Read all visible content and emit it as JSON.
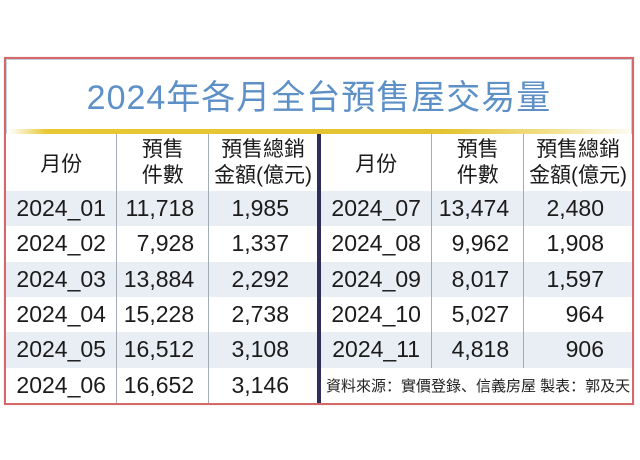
{
  "page": {
    "title": "2024年各月全台預售屋交易量",
    "source_note": "資料來源：實價登錄、信義房屋 製表：郭及天"
  },
  "table": {
    "header": {
      "month": "月份",
      "count_l1": "預售",
      "count_l2": "件數",
      "amount_l1": "預售總銷",
      "amount_l2": "金額(億元)"
    },
    "left_rows": [
      {
        "month": "2024_01",
        "count": "11,718",
        "amount": "1,985"
      },
      {
        "month": "2024_02",
        "count": "7,928",
        "amount": "1,337"
      },
      {
        "month": "2024_03",
        "count": "13,884",
        "amount": "2,292"
      },
      {
        "month": "2024_04",
        "count": "15,228",
        "amount": "2,738"
      },
      {
        "month": "2024_05",
        "count": "16,512",
        "amount": "3,108"
      },
      {
        "month": "2024_06",
        "count": "16,652",
        "amount": "3,146"
      }
    ],
    "right_rows": [
      {
        "month": "2024_07",
        "count": "13,474",
        "amount": "2,480"
      },
      {
        "month": "2024_08",
        "count": "9,962",
        "amount": "1,908"
      },
      {
        "month": "2024_09",
        "count": "8,017",
        "amount": "1,597"
      },
      {
        "month": "2024_10",
        "count": "5,027",
        "amount": "964"
      },
      {
        "month": "2024_11",
        "count": "4,818",
        "amount": "906"
      }
    ]
  },
  "colors": {
    "title_blue": "#5e90c8",
    "frame_red": "#d4686a",
    "underline_yellow": "#e8c934",
    "row_alt_blue": "#e9eef4",
    "divider_navy": "#2e2d5c",
    "column_divider_gray": "#a3adb8"
  },
  "chart_data": {
    "type": "table",
    "title": "2024年各月全台預售屋交易量",
    "columns": [
      "月份",
      "預售件數",
      "預售總銷金額(億元)"
    ],
    "rows": [
      [
        "2024_01",
        11718,
        1985
      ],
      [
        "2024_02",
        7928,
        1337
      ],
      [
        "2024_03",
        13884,
        2292
      ],
      [
        "2024_04",
        15228,
        2738
      ],
      [
        "2024_05",
        16512,
        3108
      ],
      [
        "2024_06",
        16652,
        3146
      ],
      [
        "2024_07",
        13474,
        2480
      ],
      [
        "2024_08",
        9962,
        1908
      ],
      [
        "2024_09",
        8017,
        1597
      ],
      [
        "2024_10",
        5027,
        964
      ],
      [
        "2024_11",
        4818,
        906
      ]
    ],
    "source": "資料來源：實價登錄、信義房屋 製表：郭及天"
  }
}
